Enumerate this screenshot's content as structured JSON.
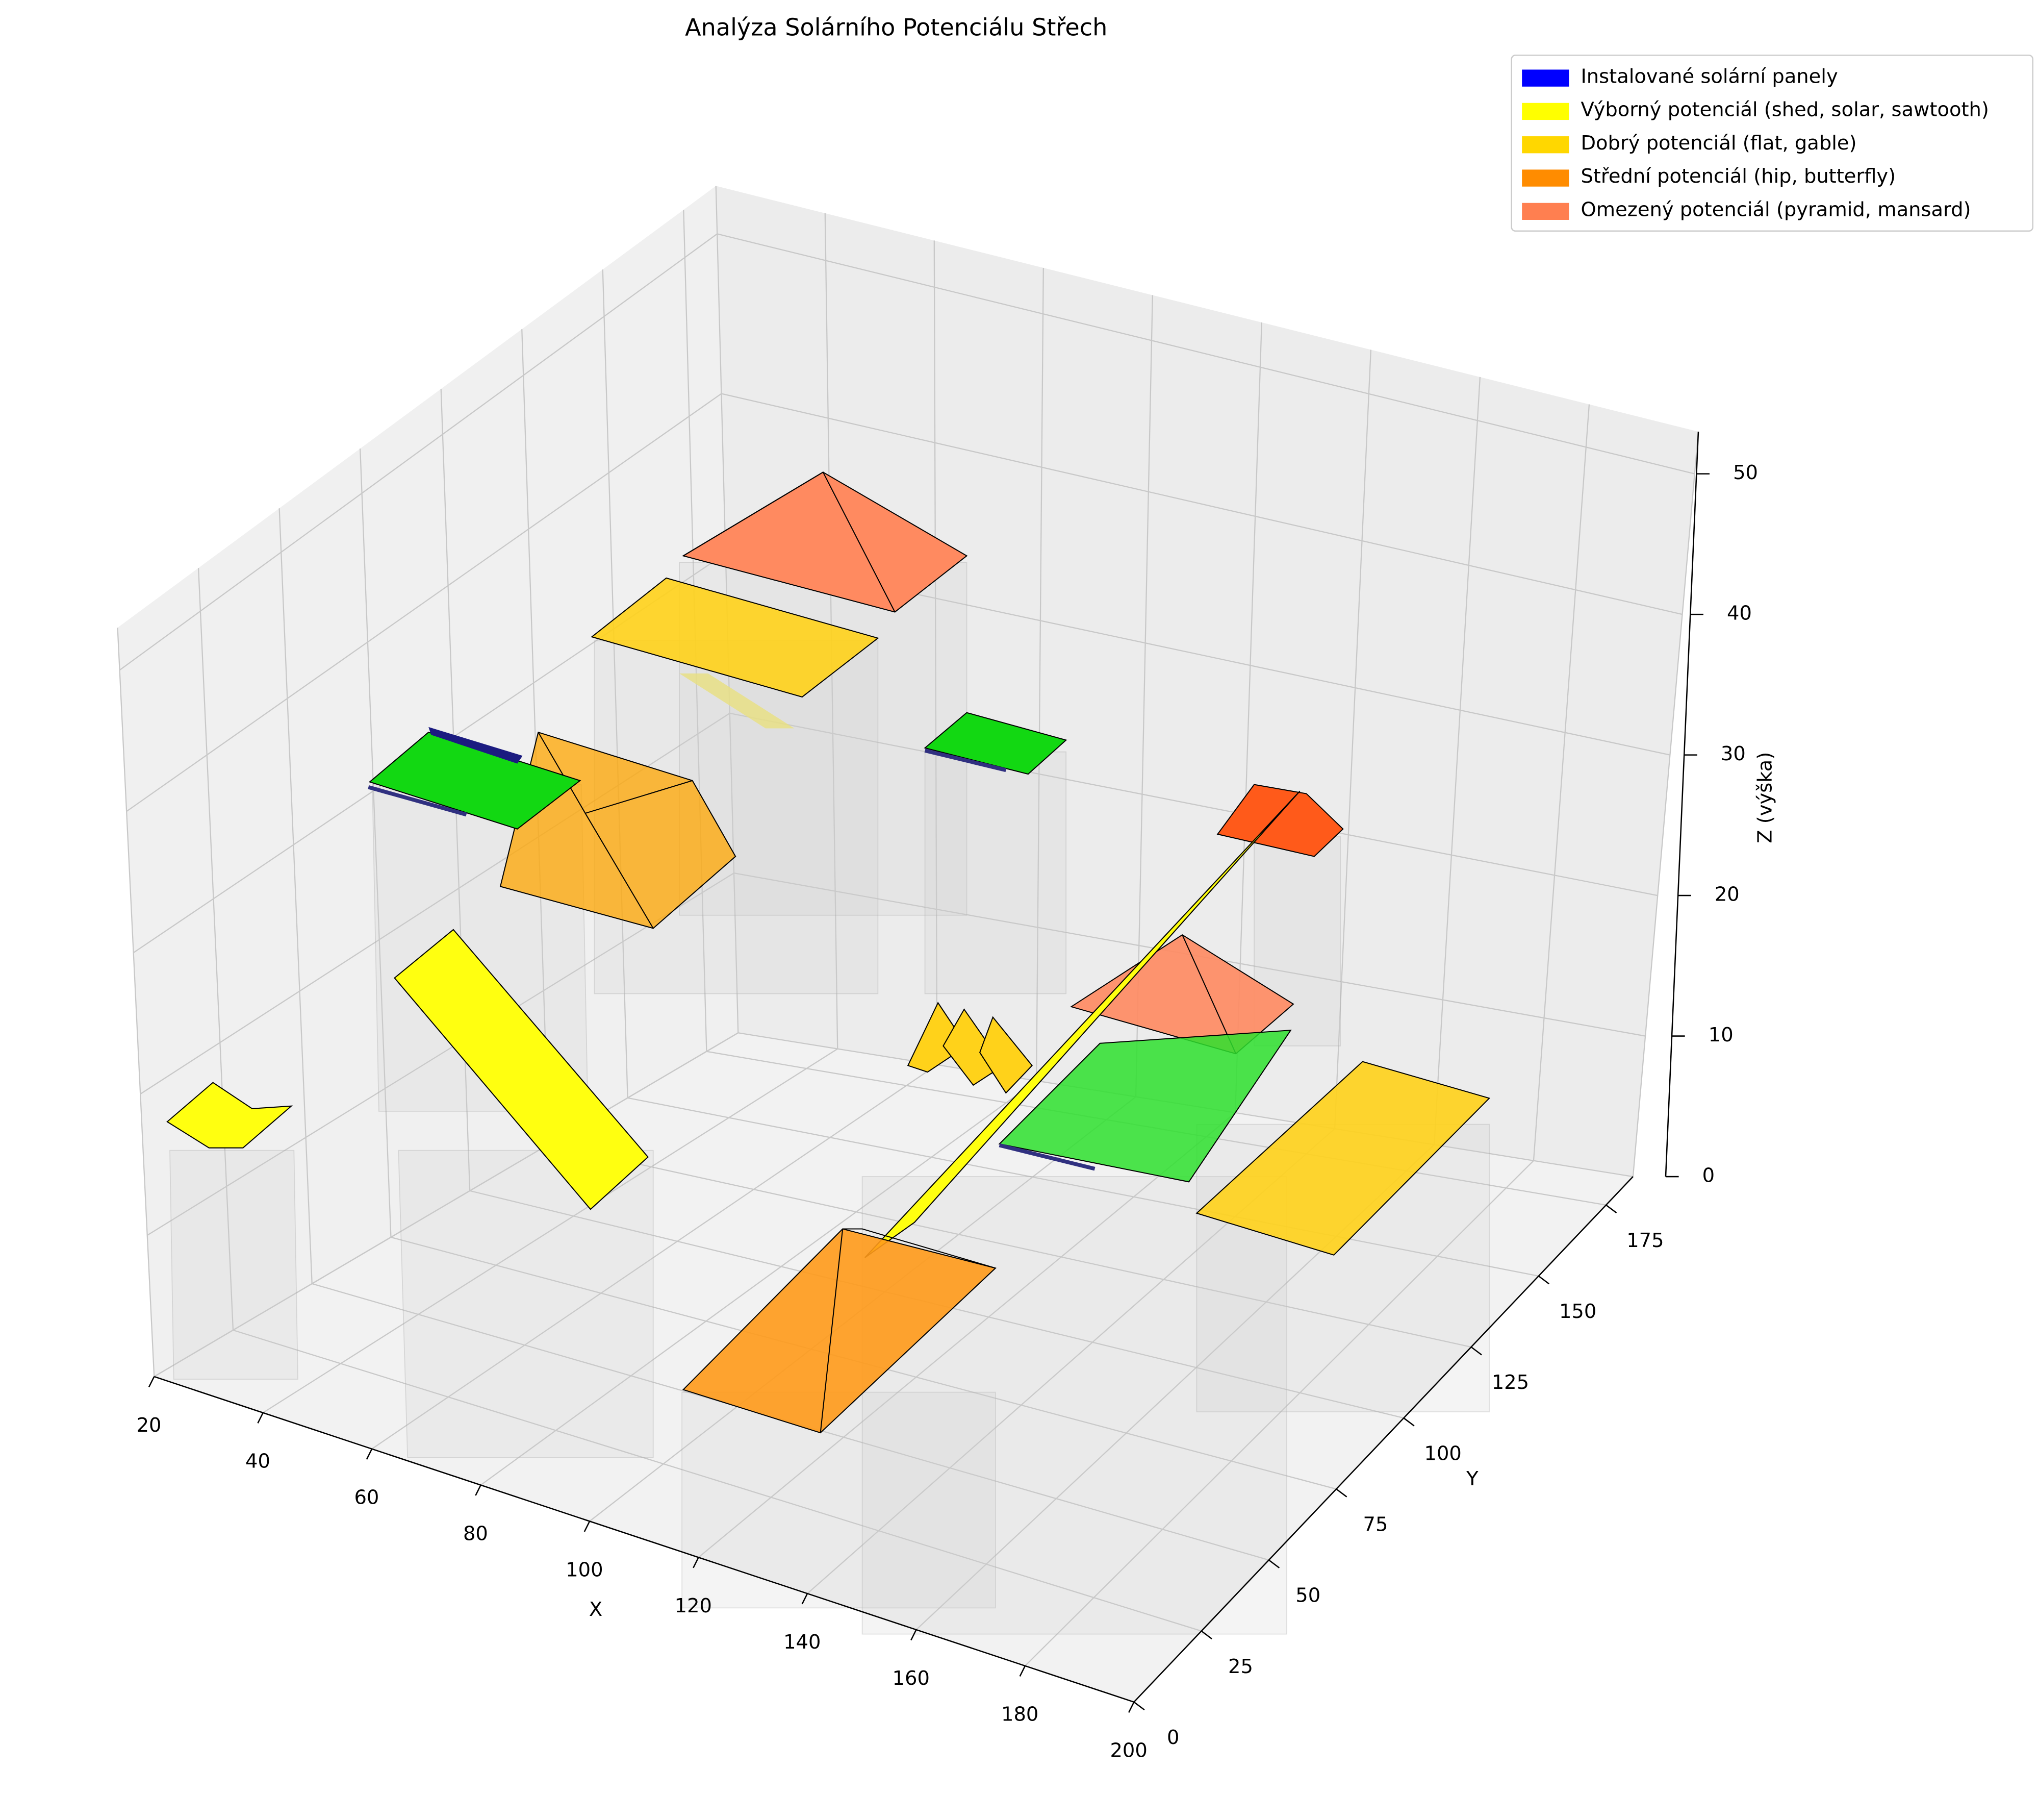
{
  "chart_data": {
    "type": "3d",
    "title": "Analýza Solárního Potenciálu Střech",
    "xlabel": "X",
    "ylabel": "Y",
    "zlabel": "Z (výška)",
    "xlim": [
      20,
      200
    ],
    "ylim": [
      0,
      185
    ],
    "zlim": [
      0,
      53
    ],
    "xticks": [
      20,
      40,
      60,
      80,
      100,
      120,
      140,
      160,
      180,
      200
    ],
    "yticks": [
      0,
      25,
      50,
      75,
      100,
      125,
      150,
      175
    ],
    "zticks": [
      0,
      10,
      20,
      30,
      40,
      50
    ],
    "grid": true,
    "legend_position": "upper right",
    "series": [
      {
        "name": "Instalované solární panely",
        "color": "#0000ff"
      },
      {
        "name": "Výborný potenciál (shed, solar, sawtooth)",
        "color": "#ffff00"
      },
      {
        "name": "Dobrý potenciál (flat, gable)",
        "color": "#ffd700"
      },
      {
        "name": "Střední potenciál (hip, butterfly)",
        "color": "#ff8c00"
      },
      {
        "name": "Omezený potenciál (pyramid, mansard)",
        "color": "#ff7f50"
      }
    ]
  }
}
